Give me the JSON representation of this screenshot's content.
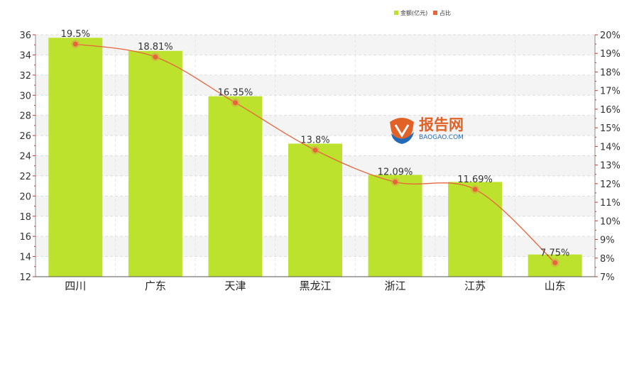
{
  "chart_data": {
    "type": "bar",
    "categories": [
      "四川",
      "广东",
      "天津",
      "黑龙江",
      "浙江",
      "江苏",
      "山东"
    ],
    "series": [
      {
        "name": "金额(亿元)",
        "type": "bar",
        "axis": "left",
        "color": "#bde22e",
        "values": [
          35.7,
          34.4,
          29.9,
          25.2,
          22.1,
          21.4,
          14.2
        ]
      },
      {
        "name": "占比",
        "type": "line",
        "axis": "right",
        "color": "#e8643c",
        "values": [
          19.5,
          18.81,
          16.35,
          13.8,
          12.09,
          11.69,
          7.75
        ],
        "labels": [
          "19.5%",
          "18.81%",
          "16.35%",
          "13.8%",
          "12.09%",
          "11.69%",
          "7.75%"
        ]
      }
    ],
    "y_left": {
      "min": 12,
      "max": 36,
      "step": 2
    },
    "y_right": {
      "min": 7,
      "max": 20,
      "step": 1,
      "suffix": "%"
    },
    "legend": {
      "position": "top-right"
    },
    "grid": true
  },
  "watermark": {
    "text_cn": "报告网",
    "text_en": "BAOGAO.COM"
  }
}
